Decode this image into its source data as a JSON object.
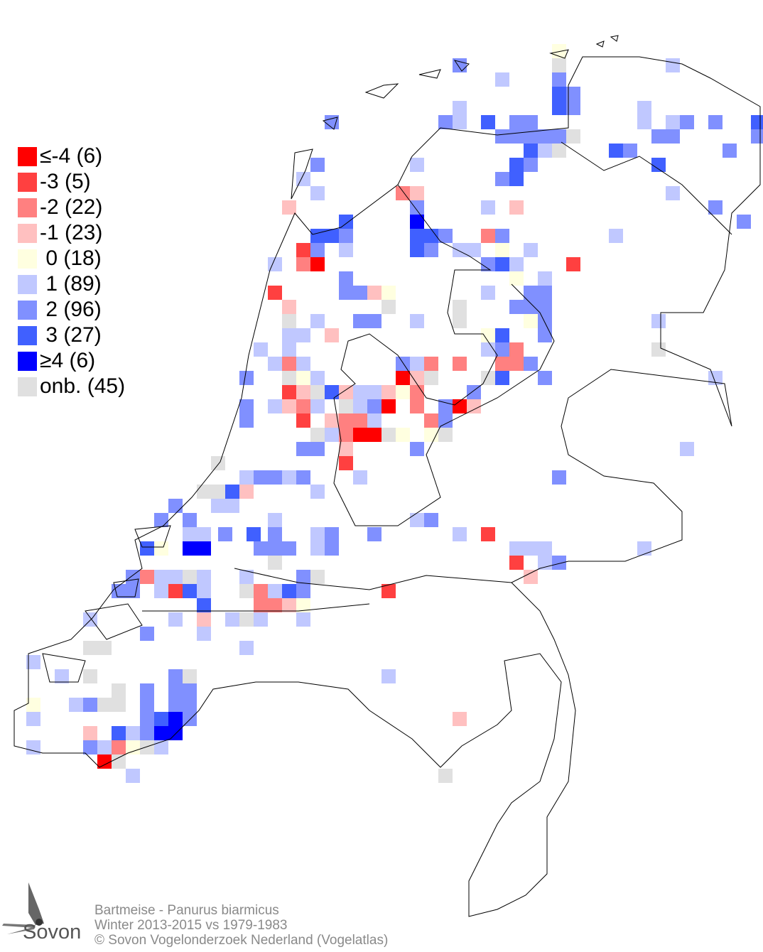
{
  "legend": {
    "items": [
      {
        "label": "≤-4 (6)",
        "code": "-4",
        "color": "#ff0000"
      },
      {
        "label": "-3 (5)",
        "code": "-3",
        "color": "#ff4040"
      },
      {
        "label": "-2 (22)",
        "code": "-2",
        "color": "#ff8080"
      },
      {
        "label": "-1 (23)",
        "code": "-1",
        "color": "#ffc0c0"
      },
      {
        "label": " 0 (18)",
        "code": "0",
        "color": "#ffffe0"
      },
      {
        "label": " 1 (89)",
        "code": "1",
        "color": "#c0c8ff"
      },
      {
        "label": " 2 (96)",
        "code": "2",
        "color": "#8090ff"
      },
      {
        "label": " 3 (27)",
        "code": "3",
        "color": "#4060ff"
      },
      {
        "label": "≥4 (6)",
        "code": "4",
        "color": "#0000ff"
      },
      {
        "label": "onb. (45)",
        "code": "u",
        "color": "#e0e0e0"
      }
    ]
  },
  "caption": {
    "species": "Bartmeise - Panurus biarmicus",
    "period": "Winter 2013-2015 vs 1979-1983",
    "copyright": "© Sovon Vogelonderzoek Nederland (Vogelatlas)"
  },
  "logo": {
    "text": "Sovon"
  }
}
